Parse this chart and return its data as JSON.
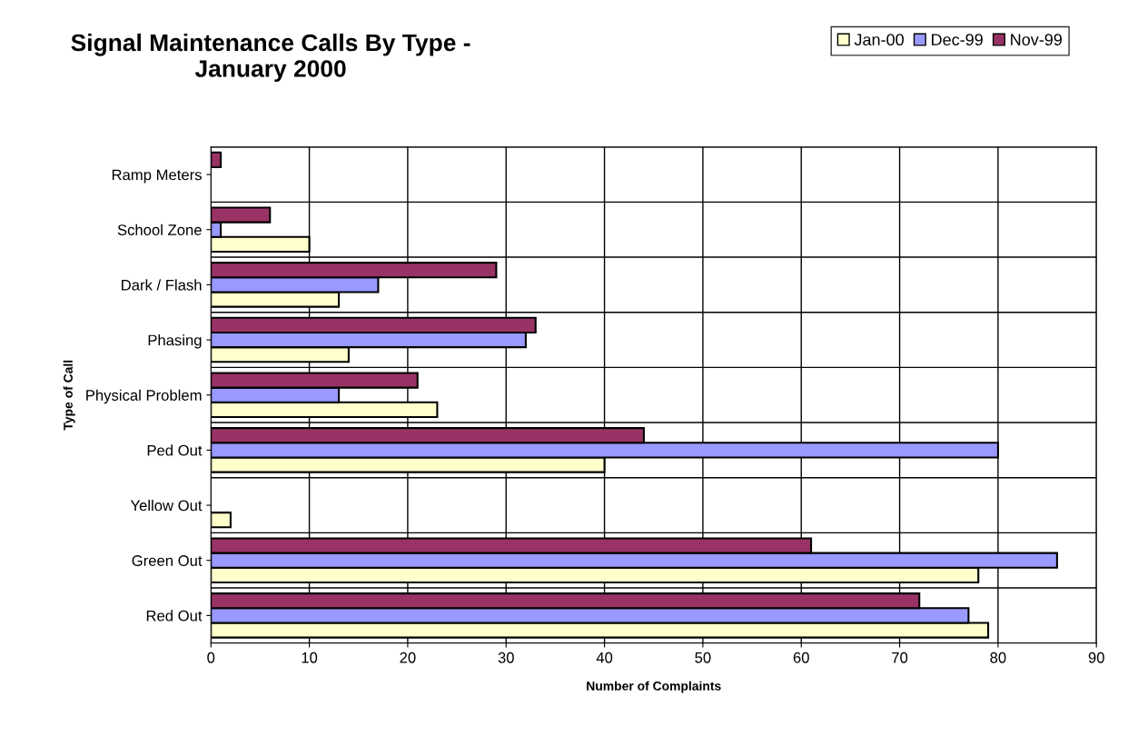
{
  "chart_data": {
    "type": "bar",
    "orientation": "horizontal",
    "title": "Signal Maintenance Calls By Type -\nJanuary 2000",
    "xlabel": "Number of Complaints",
    "ylabel": "Type of Call",
    "categories": [
      "Ramp Meters",
      "School Zone",
      "Dark / Flash",
      "Phasing",
      "Physical Problem",
      "Ped Out",
      "Yellow Out",
      "Green Out",
      "Red Out"
    ],
    "series": [
      {
        "name": "Jan-00",
        "color": "#ffffcc",
        "values": [
          0,
          10,
          13,
          14,
          23,
          40,
          2,
          78,
          79
        ]
      },
      {
        "name": "Dec-99",
        "color": "#9999ff",
        "values": [
          0,
          1,
          17,
          32,
          13,
          80,
          0,
          86,
          77
        ]
      },
      {
        "name": "Nov-99",
        "color": "#993366",
        "values": [
          1,
          6,
          29,
          33,
          21,
          44,
          0,
          61,
          72
        ]
      }
    ],
    "xlim": [
      0,
      90
    ],
    "xticks": [
      0,
      10,
      20,
      30,
      40,
      50,
      60,
      70,
      80,
      90
    ],
    "grid": true,
    "legend": "top right"
  }
}
